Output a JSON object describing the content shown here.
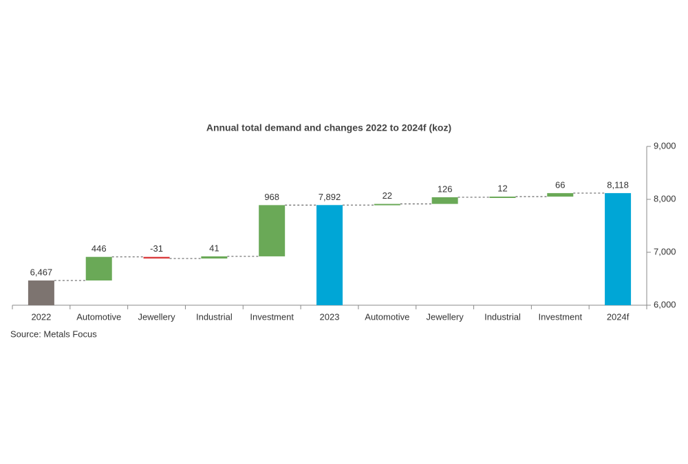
{
  "chart_data": {
    "type": "waterfall",
    "title": "Annual total demand and changes 2022 to 2024f (koz)",
    "source": "Source: Metals Focus",
    "categories": [
      "2022",
      "Automotive",
      "Jewellery",
      "Industrial",
      "Investment",
      "2023",
      "Automotive",
      "Jewellery",
      "Industrial",
      "Investment",
      "2024f"
    ],
    "measure": [
      "absolute",
      "relative",
      "relative",
      "relative",
      "relative",
      "absolute",
      "relative",
      "relative",
      "relative",
      "relative",
      "absolute"
    ],
    "values": [
      6467,
      446,
      -31,
      41,
      968,
      7892,
      22,
      126,
      12,
      66,
      8118
    ],
    "value_labels": [
      "6,467",
      "446",
      "-31",
      "41",
      "968",
      "7,892",
      "22",
      "126",
      "12",
      "66",
      "8,118"
    ],
    "colors": [
      "#7d7470",
      "#6aa957",
      "#d9393a",
      "#6aa957",
      "#6aa957",
      "#00a6d6",
      "#6aa957",
      "#6aa957",
      "#6aa957",
      "#6aa957",
      "#00a6d6"
    ],
    "ylim": [
      6000,
      9000
    ],
    "yticks": [
      {
        "value": 6000,
        "label": "6,000"
      },
      {
        "value": 7000,
        "label": "7,000"
      },
      {
        "value": 8000,
        "label": "8,000"
      },
      {
        "value": 9000,
        "label": "9,000"
      }
    ],
    "y_axis_side": "right"
  }
}
